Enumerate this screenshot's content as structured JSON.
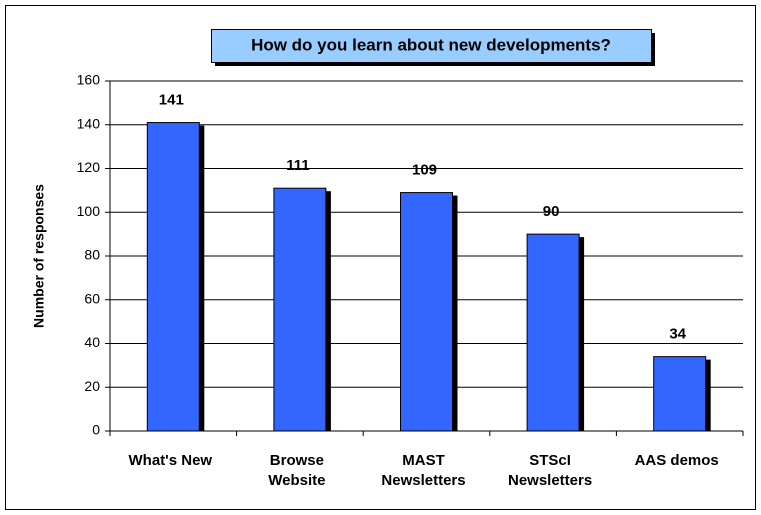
{
  "chart_data": {
    "type": "bar",
    "title": "How do you learn about new developments?",
    "y_label": "Number of responses",
    "categories": [
      [
        "What's New"
      ],
      [
        "Browse",
        "Website"
      ],
      [
        "MAST",
        "Newsletters"
      ],
      [
        "STScI",
        "Newsletters"
      ],
      [
        "AAS demos"
      ]
    ],
    "values": [
      141,
      111,
      109,
      90,
      34
    ],
    "color": "#3366ff",
    "ylim": [
      0,
      160
    ],
    "yticks": [
      0,
      20,
      40,
      60,
      80,
      100,
      120,
      140,
      160
    ],
    "grid": true
  }
}
